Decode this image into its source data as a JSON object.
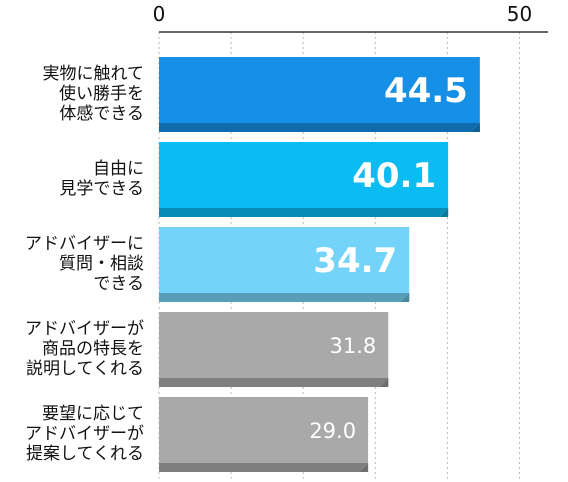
{
  "chart_data": {
    "type": "bar",
    "orientation": "horizontal",
    "title": "",
    "xlabel": "",
    "ylabel": "",
    "xlim": [
      0,
      50
    ],
    "ticks": [
      "0",
      "50"
    ],
    "grid": "dashed vertical",
    "categories": [
      "実物に触れて\n使い勝手を\n体感できる",
      "自由に\n見学できる",
      "アドバイザーに\n質問・相談\nできる",
      "アドバイザーが\n商品の特長を\n説明してくれる",
      "要望に応じて\nアドバイザーが\n提案してくれる"
    ],
    "values": [
      44.5,
      40.1,
      34.7,
      31.8,
      29.0
    ],
    "value_labels": [
      "44.5",
      "40.1",
      "34.7",
      "31.8",
      "29.0"
    ],
    "colors": [
      "#1590e6",
      "#0bbcf3",
      "#74d3f8",
      "#a9a9a9",
      "#a9a9a9"
    ],
    "label_colors": [
      "#ffffff",
      "#ffffff",
      "#ffffff",
      "#ffffff",
      "#ffffff"
    ]
  }
}
